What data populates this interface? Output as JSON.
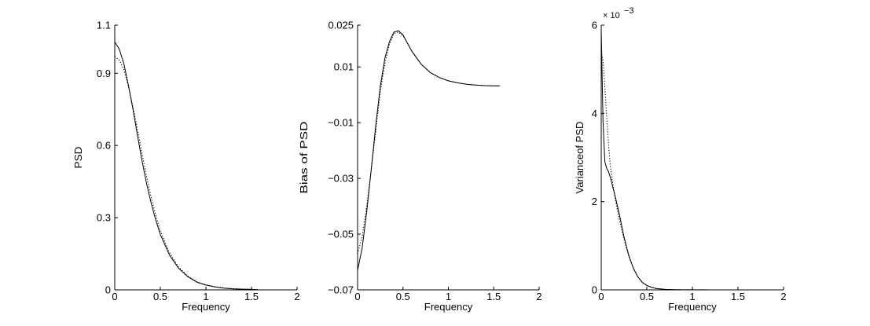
{
  "chart_data": [
    {
      "type": "line",
      "xlabel": "Frequency",
      "ylabel": "PSD",
      "xlim": [
        0,
        2
      ],
      "ylim": [
        0,
        1.1
      ],
      "xticks": [
        "0",
        "0.5",
        "1",
        "1.5",
        "2"
      ],
      "yticks": [
        "0",
        "0.3",
        "0.6",
        "0.9",
        "1.1"
      ],
      "series": [
        {
          "style": "solid",
          "x": [
            0,
            0.05,
            0.1,
            0.15,
            0.2,
            0.25,
            0.3,
            0.35,
            0.4,
            0.45,
            0.5,
            0.6,
            0.7,
            0.8,
            0.9,
            1.0,
            1.1,
            1.2,
            1.3,
            1.4,
            1.5,
            1.57
          ],
          "y": [
            1.03,
            1.0,
            0.94,
            0.85,
            0.75,
            0.64,
            0.535,
            0.44,
            0.36,
            0.29,
            0.23,
            0.145,
            0.09,
            0.055,
            0.032,
            0.02,
            0.012,
            0.007,
            0.004,
            0.003,
            0.002,
            0.001
          ]
        },
        {
          "style": "dotted",
          "x": [
            0,
            0.05,
            0.1,
            0.15,
            0.2,
            0.25,
            0.3,
            0.35,
            0.4,
            0.45,
            0.5,
            0.6,
            0.7,
            0.8,
            0.9,
            1.0,
            1.1,
            1.2,
            1.3,
            1.4,
            1.5,
            1.57
          ],
          "y": [
            0.97,
            0.955,
            0.915,
            0.845,
            0.76,
            0.665,
            0.565,
            0.47,
            0.385,
            0.31,
            0.245,
            0.155,
            0.095,
            0.058,
            0.034,
            0.021,
            0.013,
            0.008,
            0.005,
            0.003,
            0.002,
            0.001
          ]
        }
      ]
    },
    {
      "type": "line",
      "xlabel": "Frequency",
      "ylabel": "Bias of PSD",
      "xlim": [
        0,
        2
      ],
      "ylim": [
        -0.07,
        0.025
      ],
      "xticks": [
        "0",
        "0.5",
        "1",
        "1.5",
        "2"
      ],
      "yticks": [
        "−0.07",
        "−0.05",
        "−0.03",
        "−0.01",
        "0.01",
        "0.025"
      ],
      "series": [
        {
          "style": "solid",
          "x": [
            0,
            0.05,
            0.1,
            0.15,
            0.2,
            0.25,
            0.3,
            0.35,
            0.4,
            0.45,
            0.5,
            0.55,
            0.6,
            0.7,
            0.8,
            0.9,
            1.0,
            1.1,
            1.2,
            1.3,
            1.4,
            1.5,
            1.57
          ],
          "y": [
            -0.063,
            -0.055,
            -0.042,
            -0.027,
            -0.011,
            0.003,
            0.013,
            0.019,
            0.0225,
            0.023,
            0.0215,
            0.0185,
            0.0155,
            0.011,
            0.008,
            0.0062,
            0.005,
            0.0043,
            0.0038,
            0.0035,
            0.0033,
            0.0032,
            0.0032
          ]
        },
        {
          "style": "dotted",
          "x": [
            0,
            0.05,
            0.1,
            0.15,
            0.2,
            0.25,
            0.3,
            0.35,
            0.4,
            0.45,
            0.5,
            0.55,
            0.6,
            0.7,
            0.8,
            0.9,
            1.0,
            1.1,
            1.2,
            1.3,
            1.4,
            1.5,
            1.57
          ],
          "y": [
            -0.057,
            -0.051,
            -0.04,
            -0.027,
            -0.013,
            0.001,
            0.011,
            0.018,
            0.022,
            0.0225,
            0.0212,
            0.0185,
            0.0155,
            0.011,
            0.008,
            0.0062,
            0.005,
            0.0043,
            0.0038,
            0.0035,
            0.0033,
            0.0032,
            0.0032
          ]
        }
      ]
    },
    {
      "type": "line",
      "xlabel": "Frequency",
      "ylabel": "Varianceof PSD",
      "xlim": [
        0,
        2
      ],
      "ylim": [
        0,
        0.006
      ],
      "exponent_base": "× 10",
      "exponent_power": "−3",
      "xticks": [
        "0",
        "0.5",
        "1",
        "1.5",
        "2"
      ],
      "yticks": [
        "0",
        "2",
        "4",
        "6"
      ],
      "series": [
        {
          "style": "solid",
          "x": [
            0,
            0.01,
            0.02,
            0.04,
            0.06,
            0.08,
            0.1,
            0.15,
            0.2,
            0.25,
            0.3,
            0.35,
            0.4,
            0.45,
            0.5,
            0.55,
            0.6,
            0.7,
            0.8,
            0.9,
            1.0,
            1.2,
            1.4,
            1.57
          ],
          "y": [
            0.0059,
            0.0048,
            0.0038,
            0.0029,
            0.00275,
            0.00268,
            0.00255,
            0.00215,
            0.0017,
            0.0012,
            0.0008,
            0.0005,
            0.0003,
            0.00017,
            0.0001,
            6e-05,
            3e-05,
            1e-05,
            5e-06,
            2e-06,
            1e-06,
            5e-07,
            2e-07,
            1e-07
          ]
        },
        {
          "style": "dotted",
          "x": [
            0,
            0.02,
            0.04,
            0.06,
            0.08,
            0.1,
            0.12,
            0.15,
            0.2,
            0.25,
            0.3,
            0.35,
            0.4,
            0.45,
            0.5,
            0.55,
            0.6,
            0.7,
            0.8,
            0.9,
            1.0,
            1.2,
            1.4,
            1.57
          ],
          "y": [
            0.0054,
            0.0052,
            0.0046,
            0.0039,
            0.0033,
            0.0028,
            0.0025,
            0.0021,
            0.00158,
            0.00115,
            0.00078,
            0.0005,
            0.0003,
            0.00018,
            0.0001,
            6e-05,
            3e-05,
            1e-05,
            5e-06,
            2e-06,
            1e-06,
            5e-07,
            2e-07,
            1e-07
          ]
        }
      ]
    }
  ]
}
